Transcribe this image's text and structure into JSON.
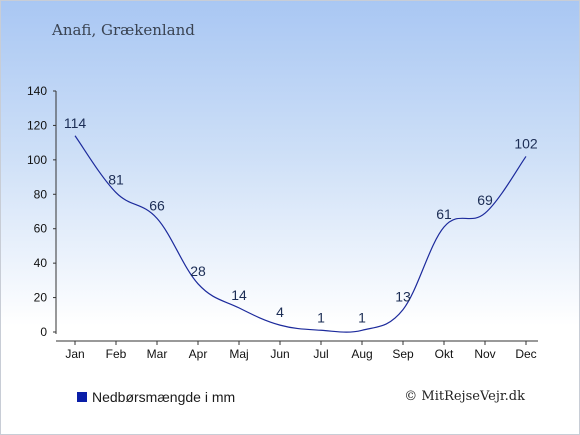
{
  "header": {
    "subtitle": "Anafi, Grækenland"
  },
  "legend": {
    "label": "Nedbørsmængde i mm",
    "color": "#0a1ea8"
  },
  "credit": "© MitRejseVejr.dk",
  "colors": {
    "line": "#1c2a9c",
    "axis": "#333333"
  },
  "chart_data": {
    "type": "line",
    "categories": [
      "Jan",
      "Feb",
      "Mar",
      "Apr",
      "Maj",
      "Jun",
      "Jul",
      "Aug",
      "Sep",
      "Okt",
      "Nov",
      "Dec"
    ],
    "series": [
      {
        "name": "Nedbørsmængde i mm",
        "values": [
          114,
          81,
          66,
          28,
          14,
          4,
          1,
          1,
          13,
          61,
          69,
          102
        ]
      }
    ],
    "ylim": [
      0,
      140
    ],
    "yticks": [
      0,
      20,
      40,
      60,
      80,
      100,
      120,
      140
    ],
    "grid": false,
    "legend_position": "bottom-left"
  }
}
